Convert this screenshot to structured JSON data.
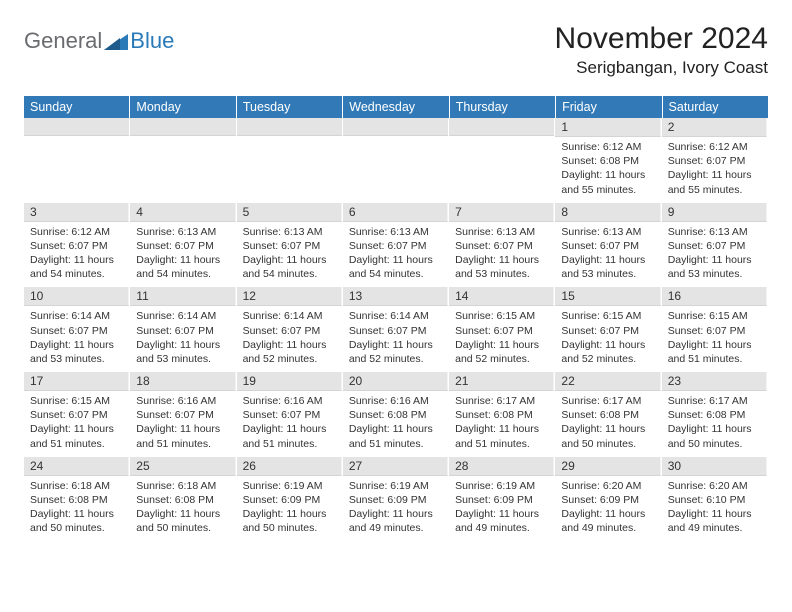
{
  "logo": {
    "general": "General",
    "blue": "Blue"
  },
  "title": {
    "month": "November 2024",
    "location": "Serigbangan, Ivory Coast"
  },
  "headers": [
    "Sunday",
    "Monday",
    "Tuesday",
    "Wednesday",
    "Thursday",
    "Friday",
    "Saturday"
  ],
  "header_bg": "#327ab7",
  "daynum_bg": "#e4e4e4",
  "weeks": [
    [
      null,
      null,
      null,
      null,
      null,
      {
        "n": "1",
        "sr": "Sunrise: 6:12 AM",
        "ss": "Sunset: 6:08 PM",
        "dl": "Daylight: 11 hours and 55 minutes."
      },
      {
        "n": "2",
        "sr": "Sunrise: 6:12 AM",
        "ss": "Sunset: 6:07 PM",
        "dl": "Daylight: 11 hours and 55 minutes."
      }
    ],
    [
      {
        "n": "3",
        "sr": "Sunrise: 6:12 AM",
        "ss": "Sunset: 6:07 PM",
        "dl": "Daylight: 11 hours and 54 minutes."
      },
      {
        "n": "4",
        "sr": "Sunrise: 6:13 AM",
        "ss": "Sunset: 6:07 PM",
        "dl": "Daylight: 11 hours and 54 minutes."
      },
      {
        "n": "5",
        "sr": "Sunrise: 6:13 AM",
        "ss": "Sunset: 6:07 PM",
        "dl": "Daylight: 11 hours and 54 minutes."
      },
      {
        "n": "6",
        "sr": "Sunrise: 6:13 AM",
        "ss": "Sunset: 6:07 PM",
        "dl": "Daylight: 11 hours and 54 minutes."
      },
      {
        "n": "7",
        "sr": "Sunrise: 6:13 AM",
        "ss": "Sunset: 6:07 PM",
        "dl": "Daylight: 11 hours and 53 minutes."
      },
      {
        "n": "8",
        "sr": "Sunrise: 6:13 AM",
        "ss": "Sunset: 6:07 PM",
        "dl": "Daylight: 11 hours and 53 minutes."
      },
      {
        "n": "9",
        "sr": "Sunrise: 6:13 AM",
        "ss": "Sunset: 6:07 PM",
        "dl": "Daylight: 11 hours and 53 minutes."
      }
    ],
    [
      {
        "n": "10",
        "sr": "Sunrise: 6:14 AM",
        "ss": "Sunset: 6:07 PM",
        "dl": "Daylight: 11 hours and 53 minutes."
      },
      {
        "n": "11",
        "sr": "Sunrise: 6:14 AM",
        "ss": "Sunset: 6:07 PM",
        "dl": "Daylight: 11 hours and 53 minutes."
      },
      {
        "n": "12",
        "sr": "Sunrise: 6:14 AM",
        "ss": "Sunset: 6:07 PM",
        "dl": "Daylight: 11 hours and 52 minutes."
      },
      {
        "n": "13",
        "sr": "Sunrise: 6:14 AM",
        "ss": "Sunset: 6:07 PM",
        "dl": "Daylight: 11 hours and 52 minutes."
      },
      {
        "n": "14",
        "sr": "Sunrise: 6:15 AM",
        "ss": "Sunset: 6:07 PM",
        "dl": "Daylight: 11 hours and 52 minutes."
      },
      {
        "n": "15",
        "sr": "Sunrise: 6:15 AM",
        "ss": "Sunset: 6:07 PM",
        "dl": "Daylight: 11 hours and 52 minutes."
      },
      {
        "n": "16",
        "sr": "Sunrise: 6:15 AM",
        "ss": "Sunset: 6:07 PM",
        "dl": "Daylight: 11 hours and 51 minutes."
      }
    ],
    [
      {
        "n": "17",
        "sr": "Sunrise: 6:15 AM",
        "ss": "Sunset: 6:07 PM",
        "dl": "Daylight: 11 hours and 51 minutes."
      },
      {
        "n": "18",
        "sr": "Sunrise: 6:16 AM",
        "ss": "Sunset: 6:07 PM",
        "dl": "Daylight: 11 hours and 51 minutes."
      },
      {
        "n": "19",
        "sr": "Sunrise: 6:16 AM",
        "ss": "Sunset: 6:07 PM",
        "dl": "Daylight: 11 hours and 51 minutes."
      },
      {
        "n": "20",
        "sr": "Sunrise: 6:16 AM",
        "ss": "Sunset: 6:08 PM",
        "dl": "Daylight: 11 hours and 51 minutes."
      },
      {
        "n": "21",
        "sr": "Sunrise: 6:17 AM",
        "ss": "Sunset: 6:08 PM",
        "dl": "Daylight: 11 hours and 51 minutes."
      },
      {
        "n": "22",
        "sr": "Sunrise: 6:17 AM",
        "ss": "Sunset: 6:08 PM",
        "dl": "Daylight: 11 hours and 50 minutes."
      },
      {
        "n": "23",
        "sr": "Sunrise: 6:17 AM",
        "ss": "Sunset: 6:08 PM",
        "dl": "Daylight: 11 hours and 50 minutes."
      }
    ],
    [
      {
        "n": "24",
        "sr": "Sunrise: 6:18 AM",
        "ss": "Sunset: 6:08 PM",
        "dl": "Daylight: 11 hours and 50 minutes."
      },
      {
        "n": "25",
        "sr": "Sunrise: 6:18 AM",
        "ss": "Sunset: 6:08 PM",
        "dl": "Daylight: 11 hours and 50 minutes."
      },
      {
        "n": "26",
        "sr": "Sunrise: 6:19 AM",
        "ss": "Sunset: 6:09 PM",
        "dl": "Daylight: 11 hours and 50 minutes."
      },
      {
        "n": "27",
        "sr": "Sunrise: 6:19 AM",
        "ss": "Sunset: 6:09 PM",
        "dl": "Daylight: 11 hours and 49 minutes."
      },
      {
        "n": "28",
        "sr": "Sunrise: 6:19 AM",
        "ss": "Sunset: 6:09 PM",
        "dl": "Daylight: 11 hours and 49 minutes."
      },
      {
        "n": "29",
        "sr": "Sunrise: 6:20 AM",
        "ss": "Sunset: 6:09 PM",
        "dl": "Daylight: 11 hours and 49 minutes."
      },
      {
        "n": "30",
        "sr": "Sunrise: 6:20 AM",
        "ss": "Sunset: 6:10 PM",
        "dl": "Daylight: 11 hours and 49 minutes."
      }
    ]
  ]
}
